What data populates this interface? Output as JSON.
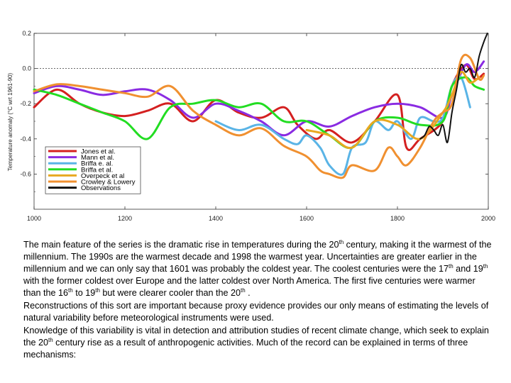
{
  "chart_data": {
    "type": "line",
    "title": "",
    "xlabel": "",
    "ylabel": "Temperature anomaly (°C wrt 1961-90)",
    "xlim": [
      1000,
      2000
    ],
    "ylim": [
      -0.8,
      0.2
    ],
    "x_ticks": [
      "1000",
      "1200",
      "1400",
      "1600",
      "1800",
      "2000"
    ],
    "y_ticks": [
      "0.2",
      "0.0",
      "-0.2",
      "-0.4",
      "-0.6"
    ],
    "reference_line": 0.0,
    "legend_position": "bottom-left",
    "series": [
      {
        "name": "Jones et al.",
        "color": "#d42020",
        "x": [
          1000,
          1050,
          1100,
          1150,
          1200,
          1250,
          1300,
          1350,
          1400,
          1450,
          1500,
          1550,
          1580,
          1620,
          1650,
          1700,
          1750,
          1800,
          1820,
          1850,
          1900,
          1920,
          1950,
          1970,
          1990
        ],
        "y": [
          -0.22,
          -0.12,
          -0.2,
          -0.25,
          -0.27,
          -0.24,
          -0.2,
          -0.3,
          -0.18,
          -0.25,
          -0.28,
          -0.22,
          -0.32,
          -0.4,
          -0.35,
          -0.42,
          -0.3,
          -0.15,
          -0.45,
          -0.4,
          -0.3,
          -0.1,
          0.02,
          -0.06,
          -0.03
        ]
      },
      {
        "name": "Mann et al.",
        "color": "#8a2be2",
        "x": [
          1000,
          1050,
          1100,
          1150,
          1200,
          1250,
          1300,
          1350,
          1400,
          1450,
          1500,
          1550,
          1600,
          1650,
          1700,
          1750,
          1800,
          1850,
          1900,
          1920,
          1950,
          1970,
          1990
        ],
        "y": [
          -0.14,
          -0.1,
          -0.12,
          -0.15,
          -0.13,
          -0.12,
          -0.18,
          -0.28,
          -0.2,
          -0.24,
          -0.3,
          -0.38,
          -0.3,
          -0.33,
          -0.27,
          -0.22,
          -0.2,
          -0.22,
          -0.28,
          -0.15,
          0.02,
          -0.02,
          0.04
        ]
      },
      {
        "name": "Briffa e. al.",
        "color": "#5ab4e6",
        "x": [
          1400,
          1450,
          1500,
          1550,
          1580,
          1600,
          1630,
          1650,
          1680,
          1700,
          1730,
          1750,
          1780,
          1800,
          1830,
          1850,
          1880,
          1900,
          1920,
          1940,
          1960
        ],
        "y": [
          -0.3,
          -0.35,
          -0.32,
          -0.4,
          -0.43,
          -0.38,
          -0.45,
          -0.55,
          -0.6,
          -0.45,
          -0.42,
          -0.3,
          -0.35,
          -0.3,
          -0.4,
          -0.28,
          -0.3,
          -0.28,
          -0.1,
          -0.05,
          -0.22
        ]
      },
      {
        "name": "Briffa et al.",
        "color": "#22dd22",
        "x": [
          1000,
          1050,
          1100,
          1150,
          1200,
          1250,
          1300,
          1350,
          1400,
          1450,
          1500,
          1550,
          1600,
          1650,
          1700,
          1750,
          1800,
          1850,
          1900,
          1920,
          1950,
          1970,
          1990
        ],
        "y": [
          -0.12,
          -0.15,
          -0.2,
          -0.25,
          -0.3,
          -0.4,
          -0.22,
          -0.2,
          -0.18,
          -0.22,
          -0.2,
          -0.3,
          -0.3,
          -0.38,
          -0.45,
          -0.3,
          -0.28,
          -0.32,
          -0.3,
          -0.1,
          -0.05,
          -0.1,
          -0.12
        ]
      },
      {
        "name": "Overpeck et al",
        "color": "#e8a820",
        "x": [
          1600,
          1650,
          1700,
          1750,
          1800,
          1850,
          1900,
          1920,
          1940,
          1960,
          1980
        ],
        "y": [
          -0.35,
          -0.38,
          -0.45,
          -0.3,
          -0.32,
          -0.4,
          -0.25,
          -0.15,
          -0.02,
          -0.08,
          -0.05
        ]
      },
      {
        "name": "Crowley & Lowery",
        "color": "#f09030",
        "x": [
          1000,
          1050,
          1100,
          1150,
          1200,
          1250,
          1300,
          1350,
          1400,
          1450,
          1500,
          1550,
          1600,
          1630,
          1650,
          1680,
          1700,
          1750,
          1780,
          1800,
          1820,
          1850,
          1880,
          1900,
          1920,
          1940,
          1960,
          1980,
          1990
        ],
        "y": [
          -0.13,
          -0.09,
          -0.1,
          -0.12,
          -0.14,
          -0.16,
          -0.1,
          -0.24,
          -0.32,
          -0.38,
          -0.34,
          -0.44,
          -0.5,
          -0.58,
          -0.6,
          -0.62,
          -0.55,
          -0.58,
          -0.45,
          -0.5,
          -0.55,
          -0.45,
          -0.3,
          -0.25,
          -0.2,
          0.05,
          0.06,
          -0.06,
          -0.04
        ]
      },
      {
        "name": "Observations",
        "color": "#111111",
        "x": [
          1850,
          1860,
          1870,
          1880,
          1890,
          1900,
          1910,
          1920,
          1930,
          1940,
          1950,
          1960,
          1970,
          1980,
          1990,
          1998
        ],
        "y": [
          -0.4,
          -0.38,
          -0.33,
          -0.35,
          -0.38,
          -0.32,
          -0.42,
          -0.25,
          -0.12,
          0.02,
          -0.02,
          0.0,
          -0.05,
          0.07,
          0.15,
          0.2
        ]
      }
    ]
  },
  "caption": {
    "p1_a": "The main feature of the series is the dramatic rise in temperatures during the 20",
    "p1_sup1": "th",
    "p1_b": " century, making it the warmest of the millennium. The 1990s are the warmest decade and 1998 the warmest year. Uncertainties are greater earlier in the millennium and we can only say that 1601 was probably the coldest year. The coolest centuries were the 17",
    "p1_sup2": "th",
    "p1_c": " and 19",
    "p1_sup3": "th",
    "p1_d": "  with the former  coldest over Europe and the latter coldest over North America. The first five centuries were  warmer than the 16",
    "p1_sup4": "th",
    "p1_e": "  to 19",
    "p1_sup5": "th",
    "p1_f": "  but were clearer cooler than the 20",
    "p1_sup6": "th",
    "p1_g": " .",
    "p2": "Reconstructions of this sort are important because proxy evidence provides our only means of estimating the levels of natural variability before meteorological instruments were used.",
    "p3_a": "Knowledge of this variability is vital in detection and attribution studies of recent climate change, which seek to explain the 20",
    "p3_sup": "th",
    "p3_b": " century rise as a result of anthropogenic activities. Much of the record can be explained in terms of three mechanisms:"
  }
}
